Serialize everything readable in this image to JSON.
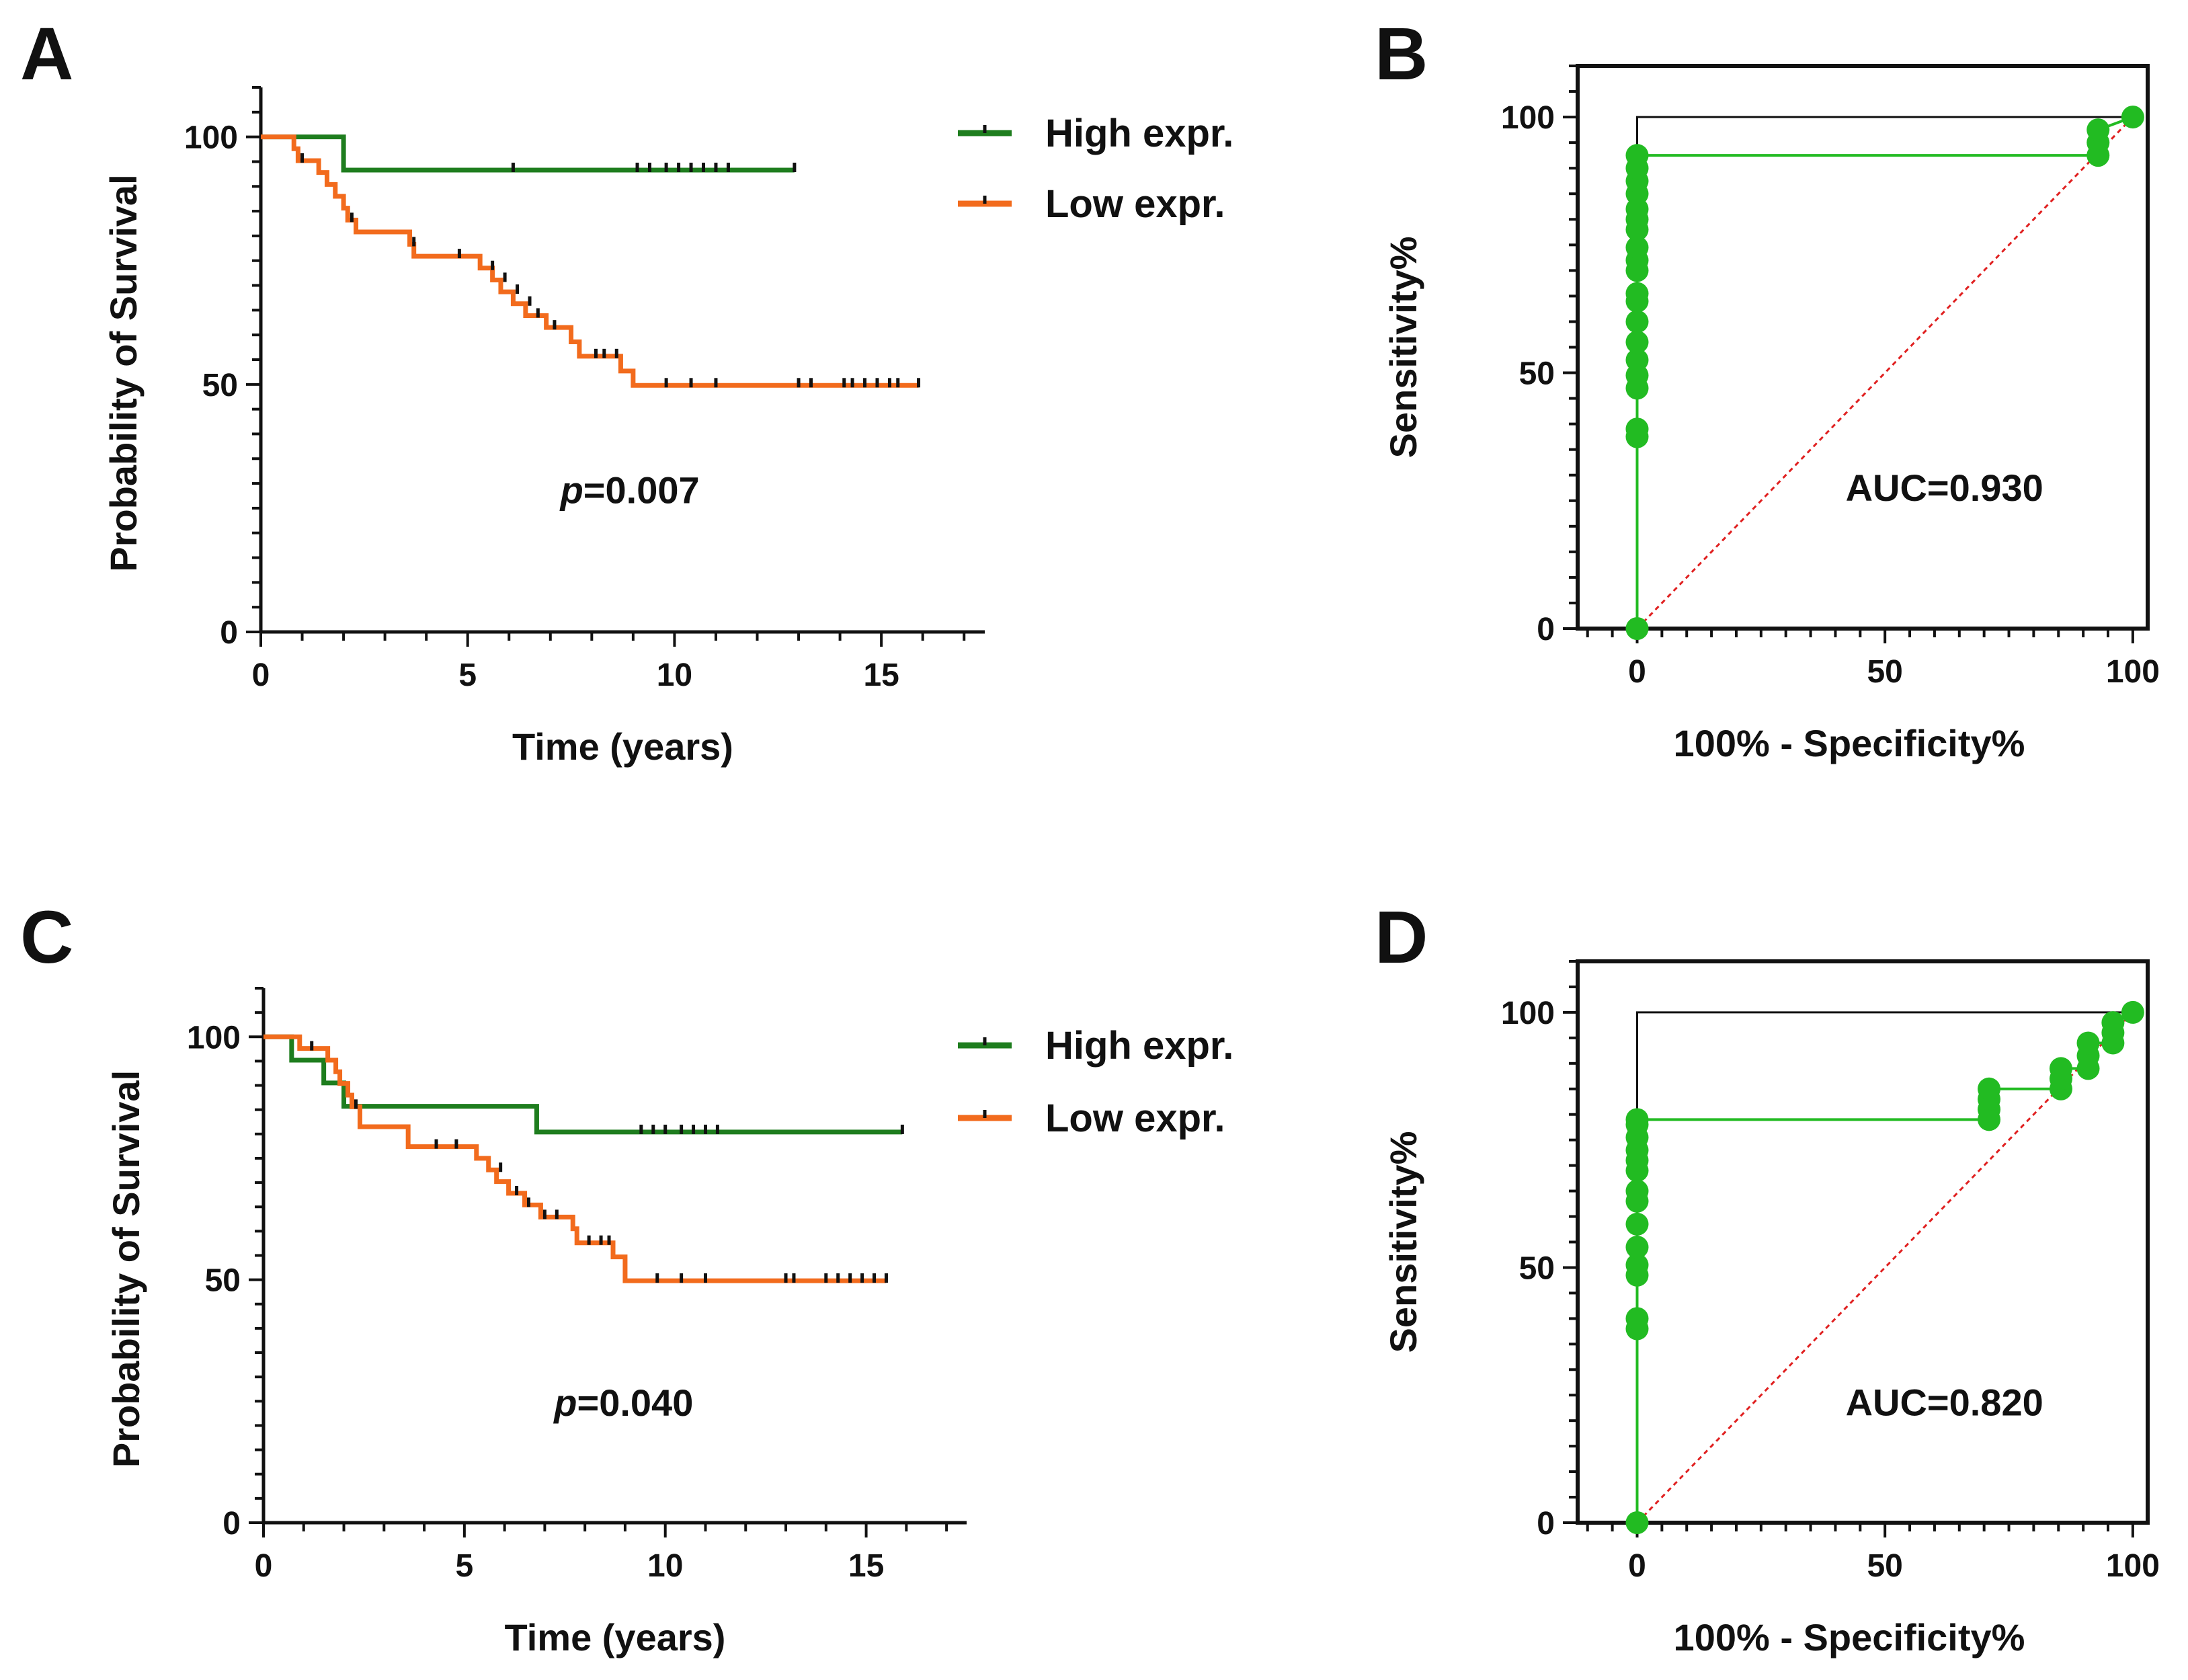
{
  "colors": {
    "high": "#1e7d1e",
    "low": "#f26b1d",
    "roc": "#22bb22",
    "diag": "#e02020",
    "axis": "#111111"
  },
  "chart_data": [
    {
      "id": "A",
      "panel_label": "A",
      "type": "line",
      "subtype": "kaplan-meier",
      "xlabel": "Time (years)",
      "ylabel": "Probability of Survival",
      "xlim": [
        0,
        17.5
      ],
      "ylim": [
        0,
        110
      ],
      "xticks": [
        0,
        5,
        10,
        15
      ],
      "xtick_labels": [
        "0",
        "5",
        "10",
        "15"
      ],
      "yticks": [
        0,
        50,
        100
      ],
      "ytick_labels": [
        "0",
        "50",
        "100"
      ],
      "legend": "top-right",
      "annotation": {
        "italic": "p",
        "text": "=0.007",
        "x": 7.5,
        "y": 26
      },
      "series": [
        {
          "name": "High expr.",
          "color_key": "high",
          "steps": [
            [
              0,
              100
            ],
            [
              2,
              93.3
            ],
            [
              12.9,
              93.3
            ]
          ],
          "censors": [
            [
              6.1,
              93.3
            ],
            [
              9.1,
              93.3
            ],
            [
              9.4,
              93.3
            ],
            [
              9.8,
              93.3
            ],
            [
              10.1,
              93.3
            ],
            [
              10.4,
              93.3
            ],
            [
              10.7,
              93.3
            ],
            [
              11,
              93.3
            ],
            [
              11.3,
              93.3
            ],
            [
              12.9,
              93.3
            ]
          ]
        },
        {
          "name": "Low expr.",
          "color_key": "low",
          "steps": [
            [
              0,
              100
            ],
            [
              0.8,
              97.6
            ],
            [
              0.9,
              95.2
            ],
            [
              1.4,
              92.8
            ],
            [
              1.6,
              90.4
            ],
            [
              1.8,
              88
            ],
            [
              2,
              85.6
            ],
            [
              2.1,
              83.2
            ],
            [
              2.3,
              80.8
            ],
            [
              3.6,
              78.3
            ],
            [
              3.7,
              75.9
            ],
            [
              5.3,
              73.5
            ],
            [
              5.6,
              71.1
            ],
            [
              5.8,
              68.7
            ],
            [
              6.1,
              66.3
            ],
            [
              6.4,
              63.9
            ],
            [
              6.9,
              61.5
            ],
            [
              7.5,
              58.6
            ],
            [
              7.7,
              55.7
            ],
            [
              8.7,
              52.7
            ],
            [
              9,
              49.8
            ],
            [
              15.9,
              49.8
            ]
          ],
          "censors": [
            [
              1,
              95.2
            ],
            [
              2.2,
              83.2
            ],
            [
              3.7,
              78.3
            ],
            [
              4.8,
              75.9
            ],
            [
              5.6,
              73.5
            ],
            [
              5.9,
              71.1
            ],
            [
              6.2,
              68.7
            ],
            [
              6.5,
              66.3
            ],
            [
              6.7,
              63.9
            ],
            [
              7.1,
              61.5
            ],
            [
              8.1,
              55.7
            ],
            [
              8.3,
              55.7
            ],
            [
              8.6,
              55.7
            ],
            [
              9.8,
              49.8
            ],
            [
              10.4,
              49.8
            ],
            [
              11,
              49.8
            ],
            [
              13,
              49.8
            ],
            [
              13.3,
              49.8
            ],
            [
              14.1,
              49.8
            ],
            [
              14.3,
              49.8
            ],
            [
              14.6,
              49.8
            ],
            [
              14.9,
              49.8
            ],
            [
              15.2,
              49.8
            ],
            [
              15.4,
              49.8
            ],
            [
              15.9,
              49.8
            ]
          ]
        }
      ]
    },
    {
      "id": "B",
      "panel_label": "B",
      "type": "line",
      "subtype": "roc",
      "xlabel": "100% - Specificity%",
      "ylabel": "Sensitivity%",
      "xlim": [
        -12,
        103
      ],
      "ylim": [
        0,
        110
      ],
      "xticks": [
        0,
        50,
        100
      ],
      "xtick_labels": [
        "0",
        "50",
        "100"
      ],
      "yticks": [
        0,
        50,
        100
      ],
      "ytick_labels": [
        "0",
        "50",
        "100"
      ],
      "annotation": {
        "text": "AUC=0.930",
        "x": 62,
        "y": 25
      },
      "series": [
        {
          "name": "ROC",
          "color_key": "roc",
          "points": [
            [
              0,
              0
            ],
            [
              0,
              37.5
            ],
            [
              0,
              39
            ],
            [
              0,
              47
            ],
            [
              0,
              49.5
            ],
            [
              0,
              52.5
            ],
            [
              0,
              56
            ],
            [
              0,
              60
            ],
            [
              0,
              64
            ],
            [
              0,
              65.5
            ],
            [
              0,
              70
            ],
            [
              0,
              72
            ],
            [
              0,
              74.5
            ],
            [
              0,
              78
            ],
            [
              0,
              80
            ],
            [
              0,
              82
            ],
            [
              0,
              85
            ],
            [
              0,
              87.5
            ],
            [
              0,
              90
            ],
            [
              0,
              92.5
            ],
            [
              93,
              92.5
            ],
            [
              93,
              95
            ],
            [
              93,
              97.5
            ],
            [
              100,
              100
            ]
          ]
        }
      ]
    },
    {
      "id": "C",
      "panel_label": "C",
      "type": "line",
      "subtype": "kaplan-meier",
      "xlabel": "Time (years)",
      "ylabel": "Probability of Survival",
      "xlim": [
        0,
        17.5
      ],
      "ylim": [
        0,
        110
      ],
      "xticks": [
        0,
        5,
        10,
        15
      ],
      "xtick_labels": [
        "0",
        "5",
        "10",
        "15"
      ],
      "yticks": [
        0,
        50,
        100
      ],
      "ytick_labels": [
        "0",
        "50",
        "100"
      ],
      "legend": "top-right",
      "annotation": {
        "italic": "p",
        "text": "=0.040",
        "x": 7.5,
        "y": 22
      },
      "series": [
        {
          "name": "High expr.",
          "color_key": "high",
          "steps": [
            [
              0,
              100
            ],
            [
              0.7,
              95.2
            ],
            [
              1.5,
              90.5
            ],
            [
              2,
              85.7
            ],
            [
              6.8,
              80.4
            ],
            [
              15.9,
              80.4
            ]
          ],
          "censors": [
            [
              1.6,
              95.2
            ],
            [
              9.4,
              80.4
            ],
            [
              9.7,
              80.4
            ],
            [
              10,
              80.4
            ],
            [
              10.4,
              80.4
            ],
            [
              10.7,
              80.4
            ],
            [
              11,
              80.4
            ],
            [
              11.3,
              80.4
            ],
            [
              15.9,
              80.4
            ]
          ]
        },
        {
          "name": "Low expr.",
          "color_key": "low",
          "steps": [
            [
              0,
              100
            ],
            [
              0.9,
              97.6
            ],
            [
              1.6,
              95.2
            ],
            [
              1.8,
              92.8
            ],
            [
              1.9,
              90.4
            ],
            [
              2.1,
              88
            ],
            [
              2.2,
              85.6
            ],
            [
              2.4,
              81.5
            ],
            [
              3.6,
              77.4
            ],
            [
              5.3,
              75
            ],
            [
              5.6,
              72.6
            ],
            [
              5.8,
              70.2
            ],
            [
              6.1,
              67.8
            ],
            [
              6.5,
              65.4
            ],
            [
              6.9,
              62.9
            ],
            [
              7.7,
              60.5
            ],
            [
              7.8,
              57.6
            ],
            [
              8.7,
              54.7
            ],
            [
              9,
              49.8
            ],
            [
              15.5,
              49.8
            ]
          ],
          "censors": [
            [
              1.2,
              97.6
            ],
            [
              2.3,
              85.6
            ],
            [
              4.3,
              77.4
            ],
            [
              4.8,
              77.4
            ],
            [
              5.9,
              72.6
            ],
            [
              6.3,
              67.8
            ],
            [
              6.6,
              65.4
            ],
            [
              7,
              62.9
            ],
            [
              7.3,
              62.9
            ],
            [
              8.1,
              57.6
            ],
            [
              8.4,
              57.6
            ],
            [
              8.6,
              57.6
            ],
            [
              9.8,
              49.8
            ],
            [
              10.4,
              49.8
            ],
            [
              11,
              49.8
            ],
            [
              13,
              49.8
            ],
            [
              13.2,
              49.8
            ],
            [
              14,
              49.8
            ],
            [
              14.3,
              49.8
            ],
            [
              14.6,
              49.8
            ],
            [
              14.9,
              49.8
            ],
            [
              15.2,
              49.8
            ],
            [
              15.5,
              49.8
            ]
          ]
        }
      ]
    },
    {
      "id": "D",
      "panel_label": "D",
      "type": "line",
      "subtype": "roc",
      "xlabel": "100% - Specificity%",
      "ylabel": "Sensitivity%",
      "xlim": [
        -12,
        103
      ],
      "ylim": [
        0,
        110
      ],
      "xticks": [
        0,
        50,
        100
      ],
      "xtick_labels": [
        "0",
        "50",
        "100"
      ],
      "yticks": [
        0,
        50,
        100
      ],
      "ytick_labels": [
        "0",
        "50",
        "100"
      ],
      "annotation": {
        "text": "AUC=0.820",
        "x": 62,
        "y": 21
      },
      "series": [
        {
          "name": "ROC",
          "color_key": "roc",
          "points": [
            [
              0,
              0
            ],
            [
              0,
              38
            ],
            [
              0,
              40
            ],
            [
              0,
              48.5
            ],
            [
              0,
              50.5
            ],
            [
              0,
              54
            ],
            [
              0,
              58.5
            ],
            [
              0,
              63
            ],
            [
              0,
              65
            ],
            [
              0,
              69
            ],
            [
              0,
              71
            ],
            [
              0,
              73
            ],
            [
              0,
              75.5
            ],
            [
              0,
              78
            ],
            [
              0,
              79
            ],
            [
              71,
              79
            ],
            [
              71,
              81
            ],
            [
              71,
              83
            ],
            [
              71,
              85
            ],
            [
              85.5,
              85
            ],
            [
              85.5,
              87
            ],
            [
              85.5,
              89
            ],
            [
              91,
              89
            ],
            [
              91,
              91.5
            ],
            [
              91,
              94
            ],
            [
              96,
              94
            ],
            [
              96,
              96
            ],
            [
              96,
              98
            ],
            [
              100,
              100
            ]
          ]
        }
      ]
    }
  ]
}
